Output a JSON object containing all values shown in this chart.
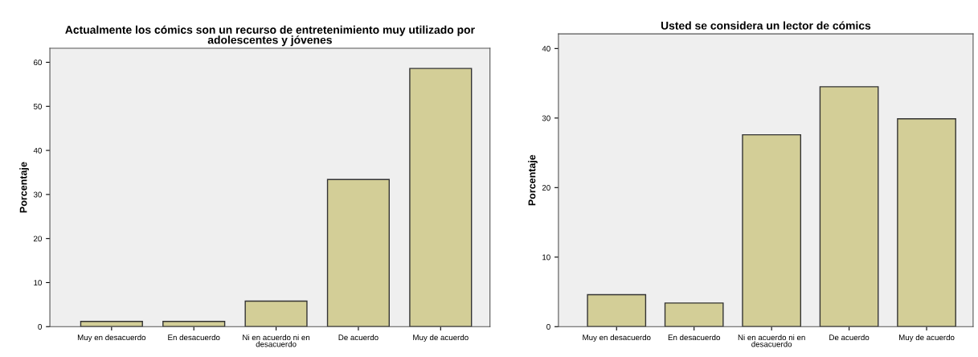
{
  "chart_data": [
    {
      "type": "bar",
      "title": "Actualmente los cómics son un recurso de entretenimiento muy utilizado por\nadolescentes y jóvenes",
      "ylabel": "Porcentaje",
      "categories": [
        "Muy en desacuerdo",
        "En desacuerdo",
        "Ni en acuerdo ni en\ndesacuerdo",
        "De acuerdo",
        "Muy de acuerdo"
      ],
      "values": [
        1.2,
        1.2,
        5.8,
        33.4,
        58.6
      ],
      "color": "#d3ce97",
      "ylim": [
        0,
        63.2
      ],
      "yticks": [
        0,
        10,
        20,
        30,
        40,
        50,
        60
      ],
      "grid": false,
      "legend": false
    },
    {
      "type": "bar",
      "title": "Usted se considera un lector de cómics",
      "ylabel": "Porcentaje",
      "categories": [
        "Muy en desacuerdo",
        "En desacuerdo",
        "Ni en acuerdo ni en\ndesacuerdo",
        "De acuerdo",
        "Muy de acuerdo"
      ],
      "values": [
        4.6,
        3.4,
        27.6,
        34.5,
        29.9
      ],
      "color": "#d3ce97",
      "ylim": [
        0,
        42.1
      ],
      "yticks": [
        0,
        10,
        20,
        30,
        40
      ],
      "grid": false,
      "legend": false
    }
  ]
}
